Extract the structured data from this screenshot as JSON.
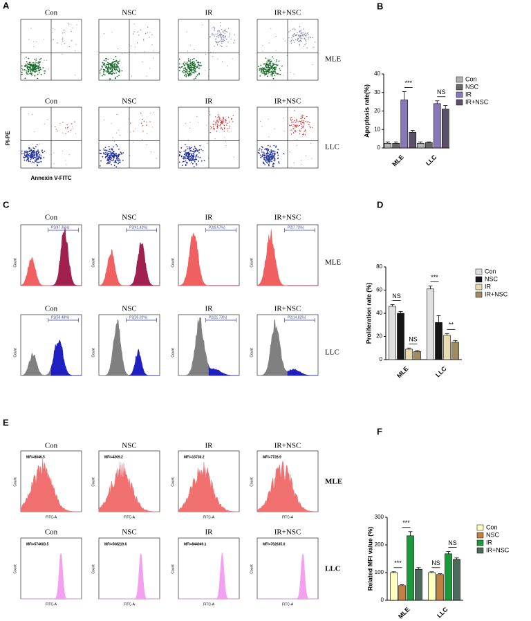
{
  "panels": {
    "A": {
      "label": "A",
      "columns": [
        "Con",
        "NSC",
        "IR",
        "IR+NSC"
      ],
      "rows": [
        "MLE",
        "LLC"
      ],
      "y_axis": "PI-PE",
      "x_axis": "Annexin V-FITC"
    },
    "C": {
      "label": "C",
      "columns": [
        "Con",
        "NSC",
        "IR",
        "IR+NSC"
      ],
      "rows": [
        "MLE",
        "LLC"
      ],
      "y_axis": "Count",
      "gates": [
        [
          "P2(47.35%)",
          "P2(41.42%)",
          "P2(9.57%)",
          "P2(7.73%)"
        ],
        [
          "P2(58.48%)",
          "P2(35.02%)",
          "P2(21.73%)",
          "P2(14.82%)"
        ]
      ]
    },
    "E": {
      "label": "E",
      "columns": [
        "Con",
        "NSC",
        "IR",
        "IR+NSC"
      ],
      "rows": [
        "MLE",
        "LLC"
      ],
      "y_axis": "Count",
      "x_axis": "FITC-A",
      "mfi": [
        [
          "MFI=8046.5",
          "MFI=4309.2",
          "MFI=15730.2",
          "MFI=7728.9"
        ],
        [
          "MFI=574603.5",
          "MFI=508219.6",
          "MFI=844049.1",
          "MFI=762635.0"
        ]
      ]
    }
  },
  "chart_data": [
    {
      "type": "bar",
      "label": "B",
      "y_label": "Apoptosis rate(%)",
      "categories": [
        "MLE",
        "LLC"
      ],
      "ylim": [
        0,
        40
      ],
      "yticks": [
        0,
        10,
        20,
        30,
        40
      ],
      "series": [
        {
          "name": "Con",
          "color": "#b0b0b0",
          "values": [
            2.5,
            2.5
          ],
          "errors": [
            0.8,
            0.8
          ]
        },
        {
          "name": "NSC",
          "color": "#666666",
          "values": [
            2.5,
            3
          ],
          "errors": [
            0.8,
            0.3
          ]
        },
        {
          "name": "IR",
          "color": "#8878b8",
          "values": [
            26,
            24
          ],
          "errors": [
            4.5,
            1.5
          ]
        },
        {
          "name": "IR+NSC",
          "color": "#5a5068",
          "values": [
            8.5,
            21
          ],
          "errors": [
            1,
            2
          ]
        }
      ],
      "annotations": [
        "***",
        "NS"
      ]
    },
    {
      "type": "bar",
      "label": "D",
      "y_label": "Proliferation rate (%)",
      "categories": [
        "MLE",
        "LLC"
      ],
      "ylim": [
        0,
        80
      ],
      "yticks": [
        0,
        20,
        40,
        60,
        80
      ],
      "series": [
        {
          "name": "Con",
          "color": "#e0e0e0",
          "values": [
            46,
            61
          ],
          "errors": [
            1.5,
            2.5
          ]
        },
        {
          "name": "NSC",
          "color": "#151515",
          "values": [
            40,
            32
          ],
          "errors": [
            1.5,
            6
          ]
        },
        {
          "name": "IR",
          "color": "#e8dcb0",
          "values": [
            9,
            21
          ],
          "errors": [
            1,
            1.5
          ]
        },
        {
          "name": "IR+NSC",
          "color": "#a08a60",
          "values": [
            7,
            15
          ],
          "errors": [
            0.8,
            1.5
          ]
        }
      ],
      "annotations": [
        "NS",
        "NS",
        "***",
        "**"
      ]
    },
    {
      "type": "bar",
      "label": "F",
      "y_label": "Related MFI value (%)",
      "categories": [
        "MLE",
        "LLC"
      ],
      "ylim": [
        0,
        300
      ],
      "yticks": [
        0,
        100,
        200,
        300
      ],
      "series": [
        {
          "name": "Con",
          "color": "#ffffc0",
          "values": [
            100,
            100
          ],
          "errors": [
            3,
            3
          ]
        },
        {
          "name": "NSC",
          "color": "#c08040",
          "values": [
            53,
            93
          ],
          "errors": [
            3,
            3
          ]
        },
        {
          "name": "IR",
          "color": "#1a9a3a",
          "values": [
            233,
            168
          ],
          "errors": [
            15,
            8
          ]
        },
        {
          "name": "IR+NSC",
          "color": "#4a6a5a",
          "values": [
            112,
            148
          ],
          "errors": [
            6,
            5
          ]
        }
      ],
      "annotations": [
        "***",
        "***",
        "NS",
        "NS"
      ]
    }
  ]
}
